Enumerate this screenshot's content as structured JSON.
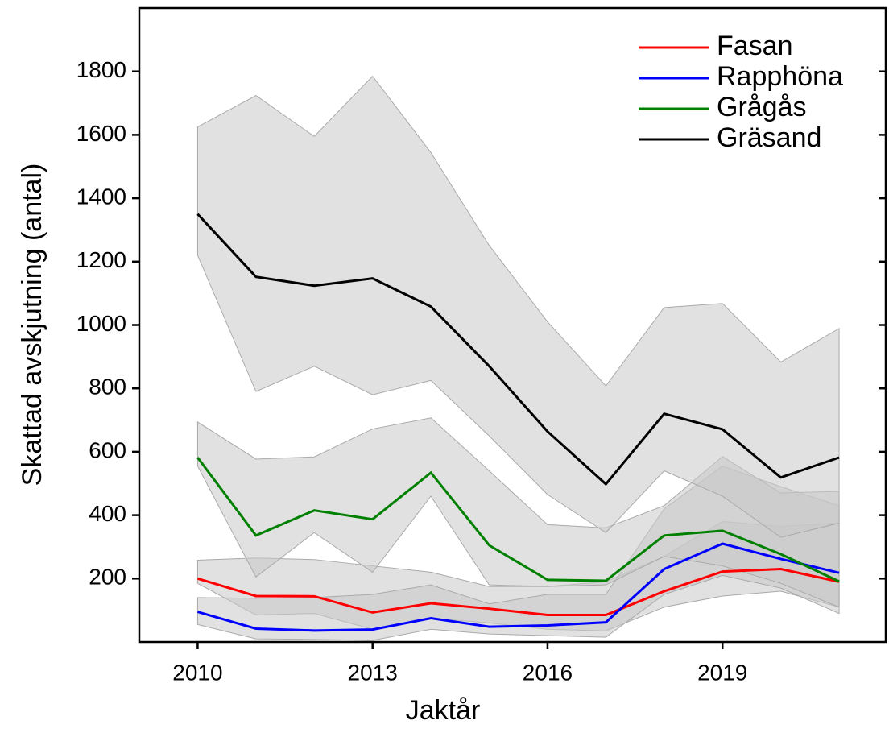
{
  "chart_data": {
    "type": "line",
    "x_label": "Jaktår",
    "y_label": "Skattad avskjutning (antal)",
    "x": [
      2010,
      2011,
      2012,
      2013,
      2014,
      2015,
      2016,
      2017,
      2018,
      2019,
      2020,
      2021
    ],
    "xlim": [
      2009,
      2021.8
    ],
    "xticks": [
      2010,
      2013,
      2016,
      2019
    ],
    "ylim": [
      0,
      2000
    ],
    "yticks": [
      200,
      400,
      600,
      800,
      1000,
      1200,
      1400,
      1600,
      1800
    ],
    "band_color": "#c8c8c8",
    "legend": "upper right",
    "series": [
      {
        "name": "Fasan",
        "color": "#ff0000",
        "values": [
          200,
          145,
          144,
          93,
          122,
          105,
          85,
          85,
          160,
          222,
          230,
          190
        ],
        "lower": [
          185,
          85,
          90,
          40,
          75,
          60,
          40,
          35,
          110,
          145,
          160,
          110
        ],
        "upper": [
          258,
          265,
          260,
          240,
          220,
          175,
          175,
          190,
          270,
          380,
          365,
          375
        ]
      },
      {
        "name": "Rapphöna",
        "color": "#0000ff",
        "values": [
          95,
          42,
          36,
          39,
          75,
          48,
          52,
          62,
          230,
          310,
          262,
          218
        ],
        "lower": [
          55,
          10,
          8,
          5,
          40,
          25,
          20,
          15,
          150,
          210,
          170,
          90
        ],
        "upper": [
          140,
          138,
          140,
          150,
          180,
          120,
          150,
          150,
          420,
          555,
          490,
          430
        ]
      },
      {
        "name": "Grågås",
        "color": "#008000",
        "values": [
          582,
          336,
          415,
          387,
          534,
          305,
          196,
          193,
          336,
          351,
          277,
          191
        ],
        "lower": [
          555,
          205,
          345,
          220,
          460,
          180,
          175,
          180,
          270,
          240,
          185,
          110
        ],
        "upper": [
          694,
          577,
          584,
          672,
          707,
          540,
          370,
          360,
          430,
          585,
          470,
          475
        ]
      },
      {
        "name": "Gräsand",
        "color": "#000000",
        "values": [
          1350,
          1152,
          1124,
          1147,
          1058,
          870,
          664,
          498,
          720,
          671,
          519,
          582
        ],
        "lower": [
          1220,
          790,
          870,
          780,
          825,
          650,
          465,
          345,
          540,
          460,
          330,
          375
        ],
        "upper": [
          1625,
          1724,
          1595,
          1785,
          1544,
          1251,
          1010,
          808,
          1055,
          1068,
          883,
          989
        ]
      }
    ]
  }
}
